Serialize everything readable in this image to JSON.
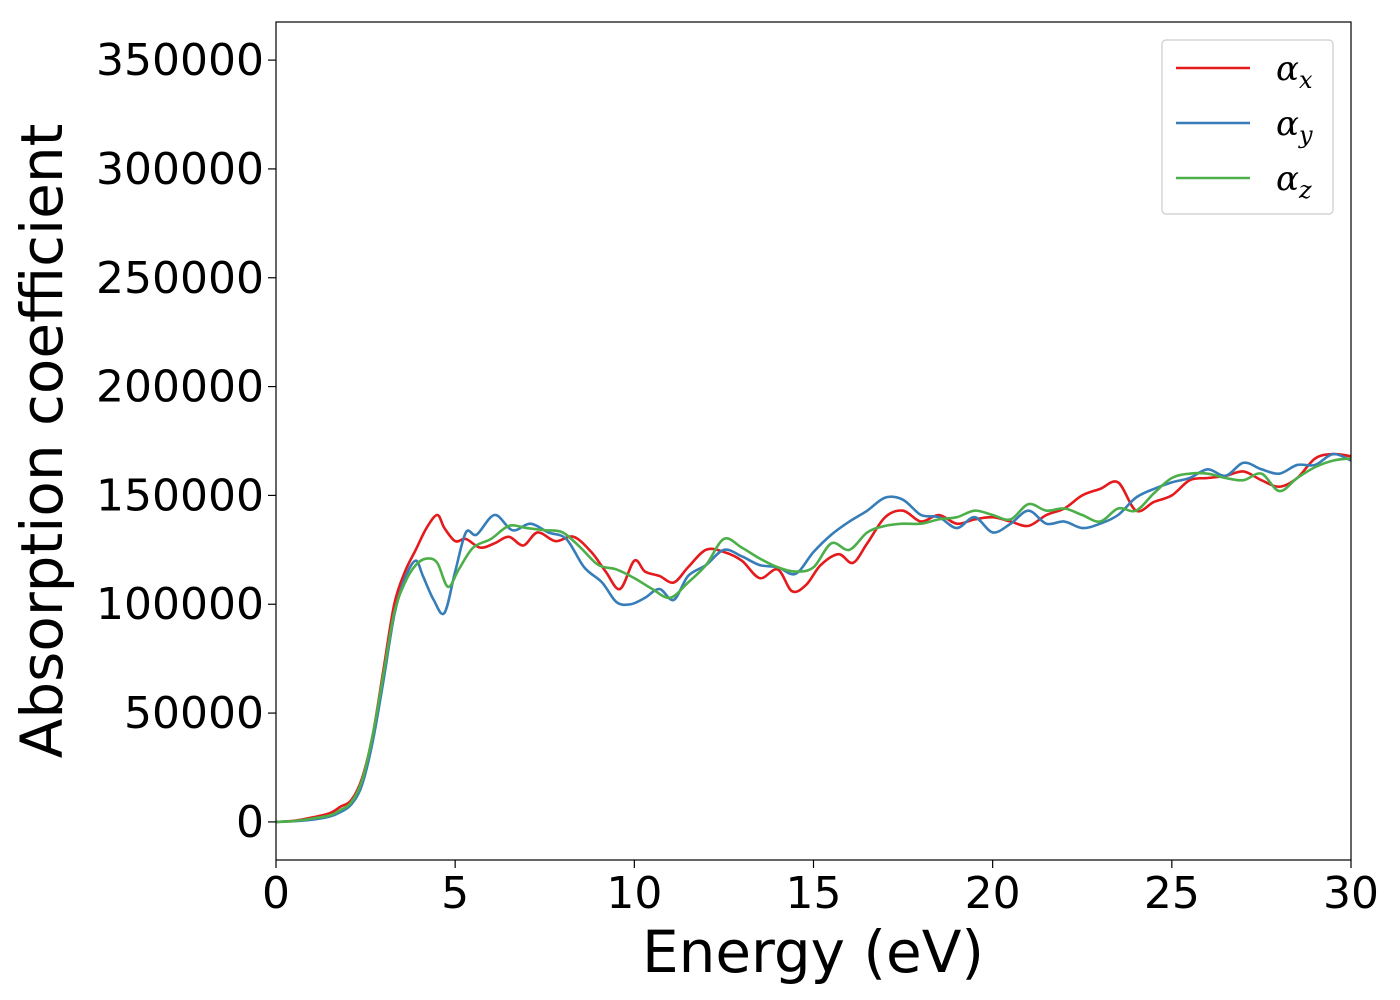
{
  "chart_data": {
    "type": "line",
    "xlabel": "Energy (eV)",
    "ylabel": "Absorption coefficient",
    "xlim": [
      0,
      30
    ],
    "ylim": [
      -17500,
      367500
    ],
    "xticks": [
      0,
      5,
      10,
      15,
      20,
      25,
      30
    ],
    "yticks": [
      0,
      50000,
      100000,
      150000,
      200000,
      250000,
      300000,
      350000
    ],
    "grid": false,
    "legend_position": "top-right",
    "series": [
      {
        "name": "α_x",
        "label_main": "α",
        "label_sub": "x",
        "color": "#e41a1c",
        "x": [
          0,
          0.5,
          1,
          1.5,
          1.8,
          2.1,
          2.4,
          2.7,
          3.0,
          3.3,
          3.6,
          3.9,
          4.2,
          4.5,
          4.7,
          5.0,
          5.3,
          5.7,
          6.1,
          6.5,
          6.9,
          7.3,
          7.8,
          8.3,
          8.8,
          9.2,
          9.6,
          10.0,
          10.3,
          10.7,
          11.1,
          11.5,
          12.0,
          12.5,
          13.0,
          13.5,
          14.0,
          14.4,
          14.8,
          15.2,
          15.7,
          16.1,
          16.5,
          17.0,
          17.5,
          18.0,
          18.5,
          19.0,
          19.5,
          20.0,
          20.5,
          21.0,
          21.5,
          22.0,
          22.5,
          23.0,
          23.5,
          24.0,
          24.5,
          25.0,
          25.5,
          26.0,
          26.5,
          27.0,
          27.5,
          28.0,
          28.5,
          29.0,
          29.5,
          30.0
        ],
        "y": [
          0,
          500,
          2000,
          4000,
          7000,
          10000,
          20000,
          40000,
          70000,
          100000,
          115000,
          125000,
          135000,
          141000,
          135000,
          129000,
          130000,
          126000,
          128000,
          131000,
          127000,
          133000,
          129000,
          131000,
          124000,
          115000,
          107000,
          120000,
          115000,
          113000,
          110000,
          117000,
          125000,
          124000,
          120000,
          112000,
          116000,
          106000,
          109000,
          118000,
          123000,
          119000,
          128000,
          140000,
          143000,
          138000,
          141000,
          137000,
          139000,
          140000,
          138000,
          136000,
          141000,
          144000,
          150000,
          153000,
          156000,
          143000,
          147000,
          150000,
          157000,
          158000,
          159000,
          161000,
          157000,
          154000,
          158000,
          167000,
          169000,
          168000
        ]
      },
      {
        "name": "α_y",
        "label_main": "α",
        "label_sub": "y",
        "color": "#377eb8",
        "x": [
          0,
          0.5,
          1,
          1.5,
          1.8,
          2.1,
          2.4,
          2.7,
          3.0,
          3.3,
          3.6,
          3.9,
          4.1,
          4.4,
          4.7,
          5.0,
          5.3,
          5.6,
          6.1,
          6.6,
          7.1,
          7.6,
          8.1,
          8.6,
          9.1,
          9.5,
          9.9,
          10.3,
          10.7,
          11.1,
          11.5,
          12.0,
          12.5,
          13.0,
          13.5,
          14.0,
          14.5,
          15.0,
          15.5,
          16.0,
          16.5,
          17.0,
          17.5,
          18.0,
          18.5,
          19.0,
          19.5,
          20.0,
          20.5,
          21.0,
          21.5,
          22.0,
          22.5,
          23.0,
          23.5,
          24.0,
          24.5,
          25.0,
          25.5,
          26.0,
          26.5,
          27.0,
          27.5,
          28.0,
          28.5,
          29.0,
          29.5,
          30.0
        ],
        "y": [
          0,
          300,
          1000,
          2500,
          4500,
          8000,
          17000,
          37000,
          65000,
          95000,
          112000,
          120000,
          113000,
          102000,
          96000,
          115000,
          133000,
          132000,
          141000,
          134000,
          137000,
          133000,
          130000,
          117000,
          110000,
          101000,
          100000,
          103000,
          107000,
          102000,
          113000,
          118000,
          125000,
          122000,
          118000,
          117000,
          114000,
          124000,
          132000,
          138000,
          143000,
          149000,
          148000,
          141000,
          140000,
          135000,
          140000,
          133000,
          137000,
          143000,
          137000,
          138000,
          135000,
          137000,
          141000,
          149000,
          153000,
          156000,
          158000,
          162000,
          159000,
          165000,
          162000,
          160000,
          164000,
          164000,
          169000,
          166000
        ]
      },
      {
        "name": "α_z",
        "label_main": "α",
        "label_sub": "z",
        "color": "#4daf4a",
        "x": [
          0,
          0.5,
          1,
          1.5,
          1.8,
          2.1,
          2.4,
          2.7,
          3.0,
          3.3,
          3.6,
          3.9,
          4.2,
          4.5,
          4.8,
          5.1,
          5.5,
          6.0,
          6.5,
          7.0,
          7.5,
          8.0,
          8.5,
          9.0,
          9.5,
          10.0,
          10.5,
          11.0,
          11.5,
          12.0,
          12.5,
          13.0,
          13.5,
          14.0,
          14.5,
          15.0,
          15.5,
          16.0,
          16.5,
          17.0,
          17.5,
          18.0,
          18.5,
          19.0,
          19.5,
          20.0,
          20.5,
          21.0,
          21.5,
          22.0,
          22.5,
          23.0,
          23.5,
          24.0,
          24.5,
          25.0,
          25.5,
          26.0,
          26.5,
          27.0,
          27.5,
          28.0,
          28.5,
          29.0,
          29.5,
          30.0
        ],
        "y": [
          0,
          400,
          1500,
          3000,
          5500,
          9000,
          19000,
          40000,
          68000,
          96000,
          110000,
          118000,
          121000,
          119000,
          108000,
          116000,
          126000,
          130000,
          136000,
          135000,
          134000,
          133000,
          126000,
          118000,
          116000,
          112000,
          107000,
          103000,
          110000,
          118000,
          130000,
          126000,
          121000,
          117000,
          115000,
          117000,
          128000,
          125000,
          133000,
          136000,
          137000,
          137000,
          139000,
          140000,
          143000,
          141000,
          139000,
          146000,
          143000,
          144000,
          141000,
          138000,
          144000,
          143000,
          151000,
          158000,
          160000,
          160000,
          158000,
          157000,
          160000,
          152000,
          158000,
          163000,
          166000,
          167000
        ]
      }
    ]
  }
}
